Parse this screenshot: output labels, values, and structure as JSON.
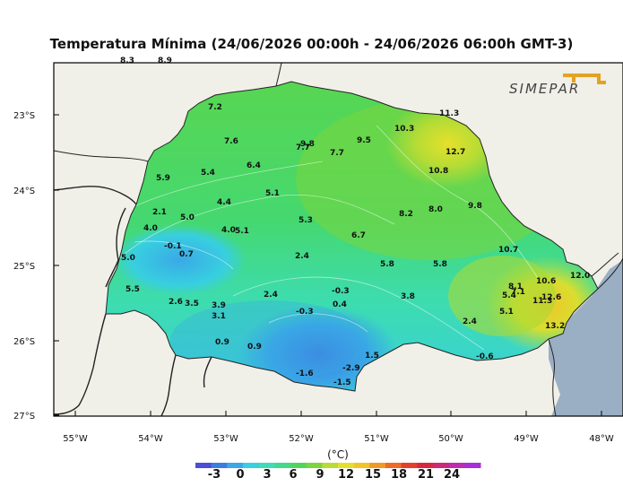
{
  "title": "Temperatura Mínima (24/06/2026 00:00h - 24/06/2026 06:00h GMT-3)",
  "logo_text": "SIMEPAR",
  "unit_label": "(°C)",
  "lon_ticks": [
    "55°W",
    "54°W",
    "53°W",
    "52°W",
    "51°W",
    "50°W",
    "49°W",
    "48°W"
  ],
  "lat_ticks": [
    "23°S",
    "24°S",
    "25°S",
    "26°S",
    "27°S"
  ],
  "colorbar": {
    "labels": [
      "-3",
      "0",
      "3",
      "6",
      "9",
      "12",
      "15",
      "18",
      "21",
      "24"
    ],
    "colors": [
      "#4a4fd6",
      "#3c7ee0",
      "#3aa9e6",
      "#38cfe0",
      "#3ddcb8",
      "#43d98a",
      "#4fd65a",
      "#7ad63c",
      "#b7dc34",
      "#e5e02c",
      "#f0c528",
      "#f09a26",
      "#ee6a26",
      "#e4402a",
      "#d8283e",
      "#cc2a78",
      "#c02cb0",
      "#a82fd8"
    ]
  },
  "station_values": [
    {
      "v": "8.3"
    },
    {
      "v": "8.9"
    },
    {
      "v": "7.2"
    },
    {
      "v": "9.8"
    },
    {
      "v": "7.7"
    },
    {
      "v": "7.6"
    },
    {
      "v": "7.7"
    },
    {
      "v": "9.5"
    },
    {
      "v": "10.3"
    },
    {
      "v": "11.3"
    },
    {
      "v": "12.7"
    },
    {
      "v": "10.8"
    },
    {
      "v": "6.4"
    },
    {
      "v": "5.4"
    },
    {
      "v": "5.9"
    },
    {
      "v": "5.1"
    },
    {
      "v": "4.4"
    },
    {
      "v": "2.1"
    },
    {
      "v": "5.0"
    },
    {
      "v": "4.0"
    },
    {
      "v": "4.0"
    },
    {
      "v": "5.1"
    },
    {
      "v": "5.3"
    },
    {
      "v": "8.2"
    },
    {
      "v": "8.0"
    },
    {
      "v": "9.8"
    },
    {
      "v": "6.7"
    },
    {
      "v": "-0.1"
    },
    {
      "v": "0.7"
    },
    {
      "v": "5.0"
    },
    {
      "v": "2.4"
    },
    {
      "v": "5.8"
    },
    {
      "v": "5.8"
    },
    {
      "v": "10.7"
    },
    {
      "v": "5.5"
    },
    {
      "v": "2.6"
    },
    {
      "v": "3.5"
    },
    {
      "v": "3.9"
    },
    {
      "v": "2.4"
    },
    {
      "v": "-0.3"
    },
    {
      "v": "3.8"
    },
    {
      "v": "8.1"
    },
    {
      "v": "5.4"
    },
    {
      "v": "7.1"
    },
    {
      "v": "10.6"
    },
    {
      "v": "12.0"
    },
    {
      "v": "0.4"
    },
    {
      "v": "3.1"
    },
    {
      "v": "-0.3"
    },
    {
      "v": "5.1"
    },
    {
      "v": "11.3"
    },
    {
      "v": "12.6"
    },
    {
      "v": "2.4"
    },
    {
      "v": "13.2"
    },
    {
      "v": "0.9"
    },
    {
      "v": "0.9"
    },
    {
      "v": "1.5"
    },
    {
      "v": "-0.6"
    },
    {
      "v": "-1.6"
    },
    {
      "v": "-2.9"
    },
    {
      "v": "-1.5"
    }
  ]
}
